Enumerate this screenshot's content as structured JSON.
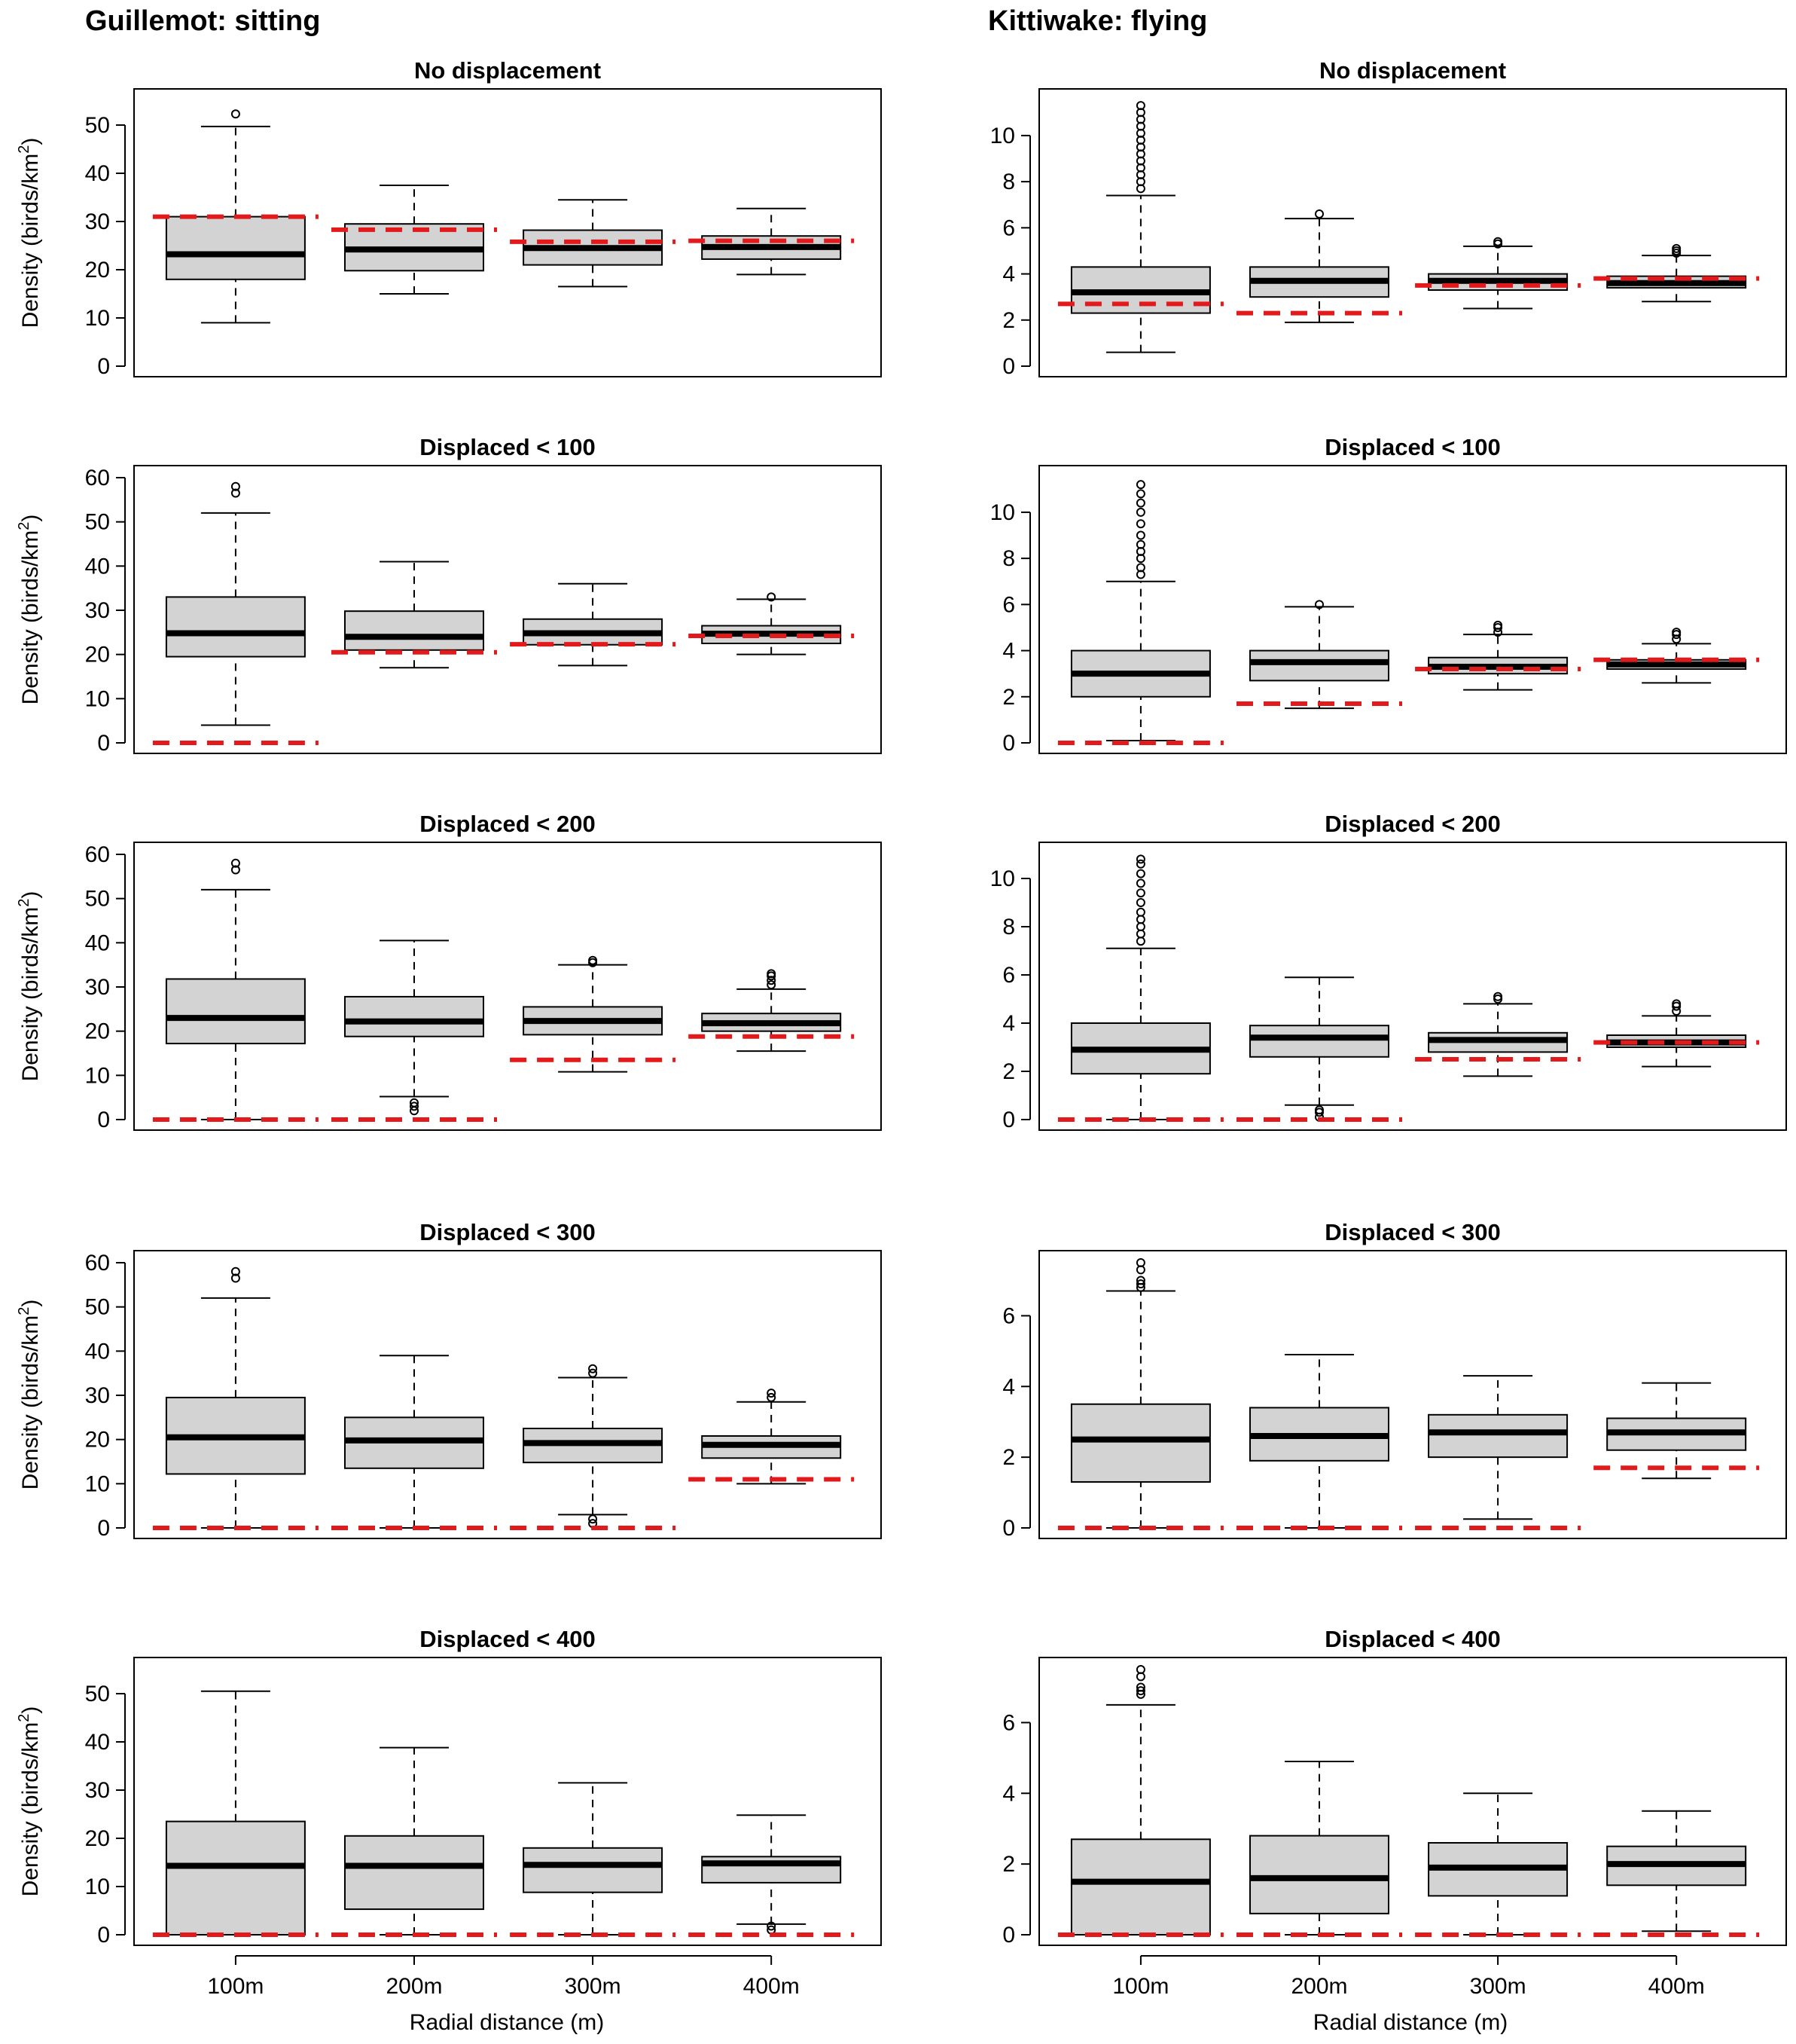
{
  "columns": [
    {
      "title": "Guillemot: sitting",
      "ylabel": "Density (birds/km",
      "ylabel_sup": "2",
      "ylabel_close": ")"
    },
    {
      "title": "Kittiwake: flying",
      "ylabel": "",
      "ylabel_sup": "",
      "ylabel_close": ""
    }
  ],
  "xlabel": "Radial distance (m)",
  "categories": [
    "100m",
    "200m",
    "300m",
    "400m"
  ],
  "colors": {
    "box_fill": "#d3d3d3",
    "reference_line": "#e31a1c",
    "stroke": "#000000"
  },
  "chart_data": [
    {
      "type": "boxplot",
      "title": "No displacement",
      "column": 0,
      "row": 0,
      "ylim": [
        0,
        55
      ],
      "yticks": [
        0,
        10,
        20,
        30,
        40,
        50
      ],
      "series": [
        {
          "category": "100m",
          "min": 9,
          "q1": 18,
          "median": 23.2,
          "q3": 31,
          "max": 49.7,
          "outliers": [
            52.3
          ],
          "reference": 31
        },
        {
          "category": "200m",
          "min": 15,
          "q1": 19.8,
          "median": 24.2,
          "q3": 29.5,
          "max": 37.5,
          "outliers": [],
          "reference": 28.3
        },
        {
          "category": "300m",
          "min": 16.5,
          "q1": 21,
          "median": 24.5,
          "q3": 28.2,
          "max": 34.5,
          "outliers": [],
          "reference": 25.8
        },
        {
          "category": "400m",
          "min": 19,
          "q1": 22.2,
          "median": 24.7,
          "q3": 27,
          "max": 32.7,
          "outliers": [],
          "reference": 26
        }
      ]
    },
    {
      "type": "boxplot",
      "title": "Displaced < 100",
      "column": 0,
      "row": 1,
      "ylim": [
        0,
        60
      ],
      "yticks": [
        0,
        10,
        20,
        30,
        40,
        50,
        60
      ],
      "series": [
        {
          "category": "100m",
          "min": 4,
          "q1": 19.5,
          "median": 24.8,
          "q3": 33,
          "max": 52,
          "outliers": [
            56.5,
            58
          ],
          "reference": 0
        },
        {
          "category": "200m",
          "min": 17,
          "q1": 21,
          "median": 24,
          "q3": 29.8,
          "max": 41,
          "outliers": [],
          "reference": 20.5
        },
        {
          "category": "300m",
          "min": 17.5,
          "q1": 22.2,
          "median": 24.8,
          "q3": 28,
          "max": 36,
          "outliers": [],
          "reference": 22.3
        },
        {
          "category": "400m",
          "min": 20,
          "q1": 22.5,
          "median": 24.7,
          "q3": 26.5,
          "max": 32.5,
          "outliers": [
            33
          ],
          "reference": 24.2
        }
      ]
    },
    {
      "type": "boxplot",
      "title": "Displaced < 200",
      "column": 0,
      "row": 2,
      "ylim": [
        0,
        60
      ],
      "yticks": [
        0,
        10,
        20,
        30,
        40,
        50,
        60
      ],
      "series": [
        {
          "category": "100m",
          "min": 0,
          "q1": 17.2,
          "median": 23,
          "q3": 31.8,
          "max": 52,
          "outliers": [
            56.5,
            58
          ],
          "reference": 0
        },
        {
          "category": "200m",
          "min": 5.2,
          "q1": 18.8,
          "median": 22.2,
          "q3": 27.8,
          "max": 40.5,
          "outliers": [
            2,
            3,
            3.8
          ],
          "reference": 0
        },
        {
          "category": "300m",
          "min": 10.8,
          "q1": 19.2,
          "median": 22.3,
          "q3": 25.5,
          "max": 35,
          "outliers": [
            35.5,
            36
          ],
          "reference": 13.5
        },
        {
          "category": "400m",
          "min": 15.5,
          "q1": 20,
          "median": 21.8,
          "q3": 24,
          "max": 29.5,
          "outliers": [
            30.5,
            31.5,
            32.5,
            33
          ],
          "reference": 18.8
        }
      ]
    },
    {
      "type": "boxplot",
      "title": "Displaced < 300",
      "column": 0,
      "row": 3,
      "ylim": [
        0,
        60
      ],
      "yticks": [
        0,
        10,
        20,
        30,
        40,
        50,
        60
      ],
      "series": [
        {
          "category": "100m",
          "min": 0,
          "q1": 12.2,
          "median": 20.5,
          "q3": 29.5,
          "max": 52,
          "outliers": [
            56.5,
            58
          ],
          "reference": 0
        },
        {
          "category": "200m",
          "min": 0,
          "q1": 13.5,
          "median": 19.8,
          "q3": 25,
          "max": 39,
          "outliers": [],
          "reference": 0
        },
        {
          "category": "300m",
          "min": 3,
          "q1": 14.8,
          "median": 19.2,
          "q3": 22.5,
          "max": 34,
          "outliers": [
            1,
            2,
            35,
            36
          ],
          "reference": 0
        },
        {
          "category": "400m",
          "min": 10,
          "q1": 15.8,
          "median": 18.8,
          "q3": 20.8,
          "max": 28.5,
          "outliers": [
            29.5,
            30.5
          ],
          "reference": 11
        }
      ]
    },
    {
      "type": "boxplot",
      "title": "Displaced < 400",
      "column": 0,
      "row": 4,
      "ylim": [
        0,
        55
      ],
      "yticks": [
        0,
        10,
        20,
        30,
        40,
        50
      ],
      "series": [
        {
          "category": "100m",
          "min": 0,
          "q1": 0,
          "median": 14.3,
          "q3": 23.5,
          "max": 50.5,
          "outliers": [],
          "reference": 0
        },
        {
          "category": "200m",
          "min": 0,
          "q1": 5.3,
          "median": 14.3,
          "q3": 20.5,
          "max": 38.8,
          "outliers": [],
          "reference": 0
        },
        {
          "category": "300m",
          "min": 0,
          "q1": 8.8,
          "median": 14.5,
          "q3": 18,
          "max": 31.5,
          "outliers": [],
          "reference": 0
        },
        {
          "category": "400m",
          "min": 2.2,
          "q1": 10.8,
          "median": 14.8,
          "q3": 16.2,
          "max": 24.8,
          "outliers": [
            1,
            1.8
          ],
          "reference": 0
        }
      ]
    },
    {
      "type": "boxplot",
      "title": "No displacement",
      "column": 1,
      "row": 0,
      "ylim": [
        0,
        11.5
      ],
      "yticks": [
        0,
        2,
        4,
        6,
        8,
        10
      ],
      "series": [
        {
          "category": "100m",
          "min": 0.6,
          "q1": 2.3,
          "median": 3.2,
          "q3": 4.3,
          "max": 7.4,
          "outliers": [
            7.7,
            8.0,
            8.3,
            8.6,
            8.9,
            9.2,
            9.5,
            9.8,
            10.1,
            10.4,
            10.7,
            11.0,
            11.3
          ],
          "reference": 2.7
        },
        {
          "category": "200m",
          "min": 1.9,
          "q1": 3.0,
          "median": 3.7,
          "q3": 4.3,
          "max": 6.4,
          "outliers": [
            6.6
          ],
          "reference": 2.3
        },
        {
          "category": "300m",
          "min": 2.5,
          "q1": 3.3,
          "median": 3.7,
          "q3": 4.0,
          "max": 5.2,
          "outliers": [
            5.3,
            5.4
          ],
          "reference": 3.5
        },
        {
          "category": "400m",
          "min": 2.8,
          "q1": 3.4,
          "median": 3.6,
          "q3": 3.9,
          "max": 4.8,
          "outliers": [
            4.9,
            5.0,
            5.1
          ],
          "reference": 3.8
        }
      ]
    },
    {
      "type": "boxplot",
      "title": "Displaced < 100",
      "column": 1,
      "row": 1,
      "ylim": [
        0,
        11.5
      ],
      "yticks": [
        0,
        2,
        4,
        6,
        8,
        10
      ],
      "series": [
        {
          "category": "100m",
          "min": 0.1,
          "q1": 2.0,
          "median": 3.0,
          "q3": 4.0,
          "max": 7.0,
          "outliers": [
            7.3,
            7.6,
            8.0,
            8.3,
            8.6,
            9.0,
            9.5,
            10.0,
            10.4,
            10.8,
            11.2
          ],
          "reference": 0
        },
        {
          "category": "200m",
          "min": 1.5,
          "q1": 2.7,
          "median": 3.5,
          "q3": 4.0,
          "max": 5.9,
          "outliers": [
            6.0
          ],
          "reference": 1.7
        },
        {
          "category": "300m",
          "min": 2.3,
          "q1": 3.0,
          "median": 3.3,
          "q3": 3.7,
          "max": 4.7,
          "outliers": [
            4.8,
            5.0,
            5.1
          ],
          "reference": 3.2
        },
        {
          "category": "400m",
          "min": 2.6,
          "q1": 3.2,
          "median": 3.4,
          "q3": 3.6,
          "max": 4.3,
          "outliers": [
            4.5,
            4.7,
            4.8
          ],
          "reference": 3.6
        }
      ]
    },
    {
      "type": "boxplot",
      "title": "Displaced < 200",
      "column": 1,
      "row": 2,
      "ylim": [
        0,
        11
      ],
      "yticks": [
        0,
        2,
        4,
        6,
        8,
        10
      ],
      "series": [
        {
          "category": "100m",
          "min": 0,
          "q1": 1.9,
          "median": 2.9,
          "q3": 4.0,
          "max": 7.1,
          "outliers": [
            7.4,
            7.7,
            8.0,
            8.3,
            8.6,
            9.0,
            9.4,
            9.8,
            10.2,
            10.6,
            10.8
          ],
          "reference": 0
        },
        {
          "category": "200m",
          "min": 0.6,
          "q1": 2.6,
          "median": 3.4,
          "q3": 3.9,
          "max": 5.9,
          "outliers": [
            0.1,
            0.3,
            0.4
          ],
          "reference": 0
        },
        {
          "category": "300m",
          "min": 1.8,
          "q1": 2.8,
          "median": 3.3,
          "q3": 3.6,
          "max": 4.8,
          "outliers": [
            5.0,
            5.1
          ],
          "reference": 2.5
        },
        {
          "category": "400m",
          "min": 2.2,
          "q1": 3.0,
          "median": 3.2,
          "q3": 3.5,
          "max": 4.3,
          "outliers": [
            4.5,
            4.7,
            4.8
          ],
          "reference": 3.2
        }
      ]
    },
    {
      "type": "boxplot",
      "title": "Displaced < 300",
      "column": 1,
      "row": 3,
      "ylim": [
        0,
        7.5
      ],
      "yticks": [
        0,
        2,
        4,
        6
      ],
      "series": [
        {
          "category": "100m",
          "min": 0,
          "q1": 1.3,
          "median": 2.5,
          "q3": 3.5,
          "max": 6.7,
          "outliers": [
            6.8,
            6.9,
            7.0,
            7.3,
            7.5
          ],
          "reference": 0
        },
        {
          "category": "200m",
          "min": 0,
          "q1": 1.9,
          "median": 2.6,
          "q3": 3.4,
          "max": 4.9,
          "outliers": [],
          "reference": 0
        },
        {
          "category": "300m",
          "min": 0.25,
          "q1": 2.0,
          "median": 2.7,
          "q3": 3.2,
          "max": 4.3,
          "outliers": [],
          "reference": 0
        },
        {
          "category": "400m",
          "min": 1.4,
          "q1": 2.2,
          "median": 2.7,
          "q3": 3.1,
          "max": 4.1,
          "outliers": [],
          "reference": 1.7
        }
      ]
    },
    {
      "type": "boxplot",
      "title": "Displaced < 400",
      "column": 1,
      "row": 4,
      "ylim": [
        0,
        7.5
      ],
      "yticks": [
        0,
        2,
        4,
        6
      ],
      "series": [
        {
          "category": "100m",
          "min": 0,
          "q1": 0,
          "median": 1.5,
          "q3": 2.7,
          "max": 6.5,
          "outliers": [
            6.8,
            6.9,
            7.0,
            7.3,
            7.5
          ],
          "reference": 0
        },
        {
          "category": "200m",
          "min": 0,
          "q1": 0.6,
          "median": 1.6,
          "q3": 2.8,
          "max": 4.9,
          "outliers": [],
          "reference": 0
        },
        {
          "category": "300m",
          "min": 0,
          "q1": 1.1,
          "median": 1.9,
          "q3": 2.6,
          "max": 4.0,
          "outliers": [],
          "reference": 0
        },
        {
          "category": "400m",
          "min": 0.1,
          "q1": 1.4,
          "median": 2.0,
          "q3": 2.5,
          "max": 3.5,
          "outliers": [],
          "reference": 0
        }
      ]
    }
  ]
}
